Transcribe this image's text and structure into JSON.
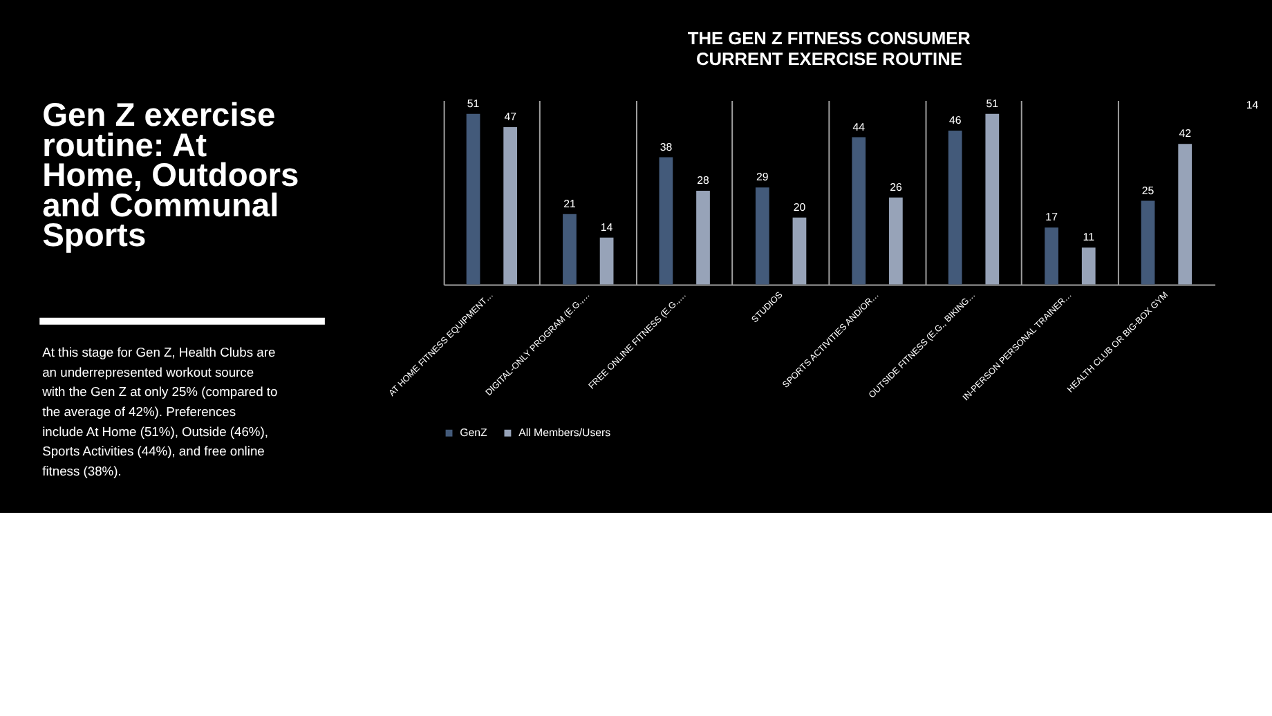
{
  "chart_data": {
    "type": "bar",
    "title": [
      "THE GEN Z FITNESS CONSUMER",
      "CURRENT EXERCISE ROUTINE"
    ],
    "categories": [
      "AT HOME FITNESS EQUIPMENT…",
      "DIGITAL-ONLY PROGRAM (E.G.,…",
      "FREE ONLINE FITNESS (E.G.,…",
      "STUDIOS",
      "SPORTS ACTIVITIES AND/OR…",
      "OUTSIDE FITNESS (E.G., BIKING…",
      "IN-PERSON PERSONAL TRAINER…",
      "HEALTH CLUB OR BIG-BOX GYM"
    ],
    "series": [
      {
        "name": "GenZ",
        "color": "#435a7a",
        "values": [
          51,
          21,
          38,
          29,
          44,
          46,
          17,
          25
        ]
      },
      {
        "name": "All Members/Users",
        "color": "#97a3b8",
        "values": [
          47,
          14,
          28,
          20,
          26,
          51,
          11,
          42
        ]
      }
    ],
    "data_labels": true,
    "grid": "x",
    "legend": "bottom",
    "annotations": [
      "Gen Z exercise\nroutine: At\nHome, Outdoors\nand Communal\nSports",
      "At this stage for Gen Z, Health Clubs are\nan underrepresented workout source\nwith the Gen Z at only 25% (compared to\nthe average of 42%). Preferences\ninclude At Home (51%), Outside (46%),\nSports Activities (44%), and free online\nfitness (38%).",
      "14"
    ]
  }
}
